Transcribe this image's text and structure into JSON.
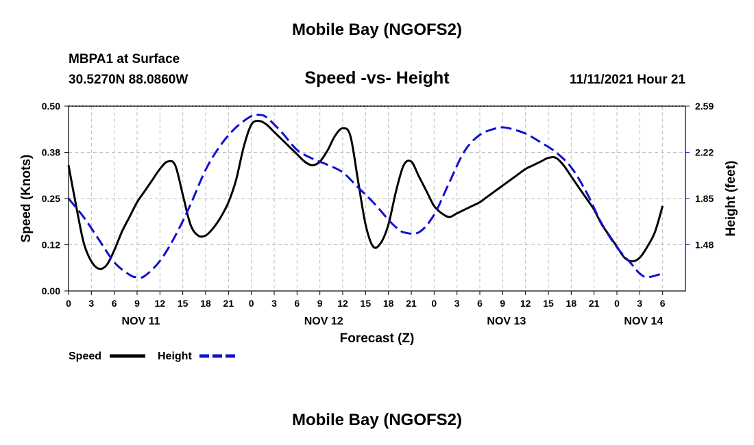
{
  "header": {
    "title": "Mobile Bay (NGOFS2)",
    "station": "MBPA1 at Surface",
    "coords": "30.5270N  88.0860W",
    "subtitle": "Speed -vs- Height",
    "timestamp": "11/11/2021 Hour 21",
    "bottom_title": "Mobile Bay (NGOFS2)"
  },
  "colors": {
    "speed": "#000000",
    "height": "#1010d0",
    "grid": "#bbbbbb"
  },
  "chart_data": {
    "type": "line",
    "title": "Speed -vs- Height",
    "xlabel": "Forecast (Z)",
    "ylabel": "Speed (Knots)",
    "y2label": "Height (feet)",
    "x_range_hours": [
      0,
      81
    ],
    "ylim": [
      0.0,
      0.5
    ],
    "y2lim": [
      1.11,
      2.59
    ],
    "x_ticks": [
      {
        "h": 0,
        "label": "0"
      },
      {
        "h": 3,
        "label": "3"
      },
      {
        "h": 6,
        "label": "6"
      },
      {
        "h": 9,
        "label": "9"
      },
      {
        "h": 12,
        "label": "12"
      },
      {
        "h": 15,
        "label": "15"
      },
      {
        "h": 18,
        "label": "18"
      },
      {
        "h": 21,
        "label": "21"
      },
      {
        "h": 24,
        "label": "0"
      },
      {
        "h": 27,
        "label": "3"
      },
      {
        "h": 30,
        "label": "6"
      },
      {
        "h": 33,
        "label": "9"
      },
      {
        "h": 36,
        "label": "12"
      },
      {
        "h": 39,
        "label": "15"
      },
      {
        "h": 42,
        "label": "18"
      },
      {
        "h": 45,
        "label": "21"
      },
      {
        "h": 48,
        "label": "0"
      },
      {
        "h": 51,
        "label": "3"
      },
      {
        "h": 54,
        "label": "6"
      },
      {
        "h": 57,
        "label": "9"
      },
      {
        "h": 60,
        "label": "12"
      },
      {
        "h": 63,
        "label": "15"
      },
      {
        "h": 66,
        "label": "18"
      },
      {
        "h": 69,
        "label": "21"
      },
      {
        "h": 72,
        "label": "0"
      },
      {
        "h": 75,
        "label": "3"
      },
      {
        "h": 78,
        "label": "6"
      }
    ],
    "date_labels": [
      {
        "h": 9.5,
        "label": "NOV 11"
      },
      {
        "h": 33.5,
        "label": "NOV 12"
      },
      {
        "h": 57.5,
        "label": "NOV 13"
      },
      {
        "h": 75.5,
        "label": "NOV 14"
      }
    ],
    "y_ticks": [
      {
        "v": 0.0,
        "label": "0.00"
      },
      {
        "v": 0.125,
        "label": "0.12"
      },
      {
        "v": 0.25,
        "label": "0.25"
      },
      {
        "v": 0.375,
        "label": "0.38"
      },
      {
        "v": 0.5,
        "label": "0.50"
      }
    ],
    "y2_ticks": [
      {
        "v": 1.48,
        "label": "1.48"
      },
      {
        "v": 1.85,
        "label": "1.85"
      },
      {
        "v": 2.22,
        "label": "2.22"
      },
      {
        "v": 2.59,
        "label": "2.59"
      }
    ],
    "series": [
      {
        "name": "Speed",
        "axis": "left",
        "style": "solid",
        "x": [
          0,
          1,
          2,
          3,
          4,
          5,
          6,
          7,
          8,
          9,
          10,
          11,
          12,
          13,
          14,
          15,
          16,
          17,
          18,
          19,
          20,
          21,
          22,
          23,
          24,
          25,
          26,
          27,
          28,
          29,
          30,
          31,
          32,
          33,
          34,
          35,
          36,
          37,
          38,
          39,
          40,
          41,
          42,
          43,
          44,
          45,
          46,
          47,
          48,
          49,
          50,
          51,
          52,
          53,
          54,
          55,
          56,
          57,
          58,
          59,
          60,
          61,
          62,
          63,
          64,
          65,
          66,
          67,
          68,
          69,
          70,
          71,
          72,
          73,
          74,
          75,
          76,
          77,
          78
        ],
        "values": [
          0.34,
          0.23,
          0.13,
          0.08,
          0.06,
          0.07,
          0.11,
          0.16,
          0.2,
          0.24,
          0.27,
          0.3,
          0.33,
          0.35,
          0.34,
          0.26,
          0.18,
          0.15,
          0.15,
          0.17,
          0.2,
          0.24,
          0.3,
          0.39,
          0.45,
          0.46,
          0.45,
          0.43,
          0.41,
          0.39,
          0.37,
          0.35,
          0.34,
          0.35,
          0.38,
          0.42,
          0.44,
          0.42,
          0.3,
          0.18,
          0.12,
          0.13,
          0.18,
          0.27,
          0.34,
          0.35,
          0.31,
          0.27,
          0.23,
          0.21,
          0.2,
          0.21,
          0.22,
          0.23,
          0.24,
          0.255,
          0.27,
          0.285,
          0.3,
          0.315,
          0.33,
          0.34,
          0.35,
          0.36,
          0.36,
          0.34,
          0.31,
          0.28,
          0.25,
          0.22,
          0.18,
          0.15,
          0.12,
          0.09,
          0.08,
          0.09,
          0.12,
          0.16,
          0.23
        ]
      },
      {
        "name": "Height",
        "axis": "right",
        "style": "dashed",
        "x": [
          0,
          2,
          4,
          6,
          8,
          9,
          10,
          12,
          14,
          16,
          18,
          20,
          22,
          24,
          25,
          26,
          28,
          30,
          32,
          34,
          36,
          38,
          40,
          42,
          43,
          44,
          46,
          48,
          50,
          52,
          54,
          56,
          57,
          58,
          60,
          62,
          64,
          66,
          68,
          70,
          72,
          74,
          75,
          76,
          78
        ],
        "values": [
          1.85,
          1.7,
          1.52,
          1.34,
          1.24,
          1.22,
          1.23,
          1.35,
          1.55,
          1.8,
          2.08,
          2.28,
          2.42,
          2.51,
          2.52,
          2.5,
          2.38,
          2.24,
          2.17,
          2.12,
          2.06,
          1.94,
          1.82,
          1.68,
          1.62,
          1.58,
          1.58,
          1.72,
          1.98,
          2.23,
          2.36,
          2.41,
          2.42,
          2.41,
          2.37,
          2.3,
          2.22,
          2.1,
          1.9,
          1.65,
          1.46,
          1.32,
          1.25,
          1.22,
          1.25
        ]
      }
    ],
    "legend": [
      "Speed",
      "Height"
    ]
  }
}
